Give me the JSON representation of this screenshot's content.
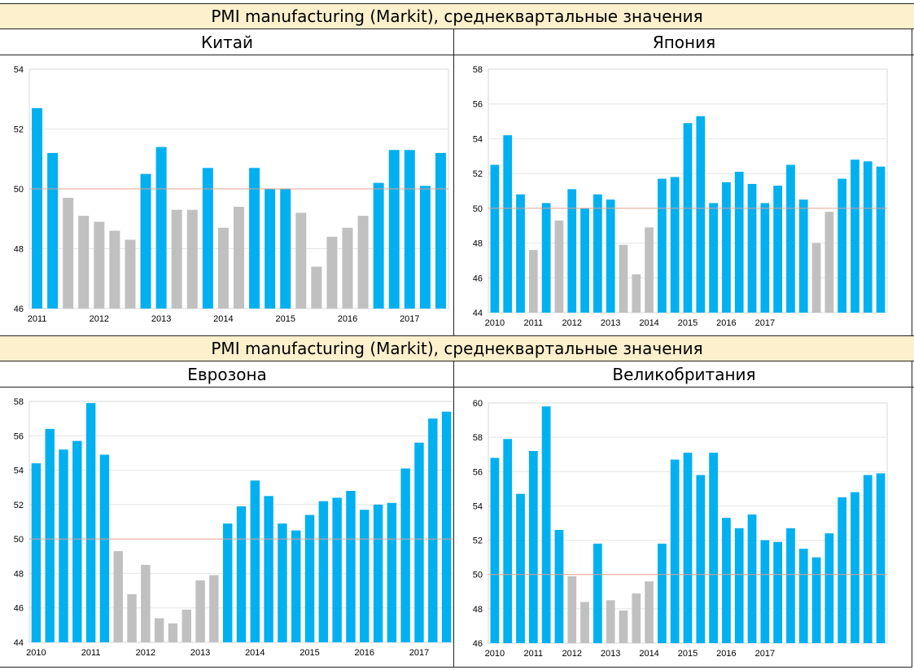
{
  "headers": {
    "top": "PMI manufacturing (Markit), среднеквартальные значения",
    "bottom": "PMI manufacturing (Markit), среднеквартальные значения"
  },
  "colors": {
    "above_50": "#00b0f0",
    "below_50": "#c0c0c0",
    "reference_line": "#e0a090",
    "grid": "#e4e4e4"
  },
  "chart_data": [
    {
      "type": "bar",
      "title": "Китай",
      "ylim": [
        46,
        54
      ],
      "yticks": [
        46,
        48,
        50,
        52,
        54
      ],
      "reference": 50,
      "x_labels": [
        "2011",
        "2012",
        "2013",
        "2014",
        "2015",
        "2016",
        "2017"
      ],
      "x_label_bar_index": [
        0,
        4,
        8,
        12,
        16,
        20,
        24
      ],
      "values": [
        52.7,
        51.2,
        49.7,
        49.1,
        48.9,
        48.6,
        48.3,
        50.5,
        51.4,
        49.3,
        49.3,
        50.7,
        48.7,
        49.4,
        50.7,
        50.0,
        50.0,
        49.2,
        47.4,
        48.4,
        48.7,
        49.1,
        50.2,
        51.3,
        51.3,
        50.1,
        51.2
      ]
    },
    {
      "type": "bar",
      "title": "Япония",
      "ylim": [
        44,
        58
      ],
      "yticks": [
        44,
        46,
        48,
        50,
        52,
        54,
        56,
        58
      ],
      "reference": 50,
      "x_labels": [
        "2010",
        "2011",
        "2012",
        "2013",
        "2014",
        "2015",
        "2016",
        "2017"
      ],
      "x_label_bar_index": [
        0,
        3,
        6,
        9,
        12,
        15,
        18,
        21
      ],
      "values": [
        52.5,
        54.2,
        50.8,
        47.6,
        50.3,
        49.3,
        51.1,
        50.0,
        50.8,
        50.5,
        47.9,
        46.2,
        48.9,
        51.7,
        51.8,
        54.9,
        55.3,
        50.3,
        51.5,
        52.1,
        51.4,
        50.3,
        51.3,
        52.5,
        50.5,
        48.0,
        49.8,
        51.7,
        52.8,
        52.7,
        52.4
      ]
    },
    {
      "type": "bar",
      "title": "Еврозона",
      "ylim": [
        44,
        58
      ],
      "yticks": [
        44,
        46,
        48,
        50,
        52,
        54,
        56,
        58
      ],
      "reference": 50,
      "x_labels": [
        "2010",
        "2011",
        "2012",
        "2013",
        "2014",
        "2015",
        "2016",
        "2017"
      ],
      "x_label_bar_index": [
        0,
        4,
        8,
        12,
        16,
        20,
        24,
        28
      ],
      "values": [
        54.4,
        56.4,
        55.2,
        55.7,
        57.9,
        54.9,
        49.3,
        46.8,
        48.5,
        45.4,
        45.1,
        45.9,
        47.6,
        47.9,
        50.9,
        51.9,
        53.4,
        52.5,
        50.9,
        50.5,
        51.4,
        52.2,
        52.4,
        52.8,
        51.7,
        52.0,
        52.1,
        54.1,
        55.6,
        57.0,
        57.4
      ]
    },
    {
      "type": "bar",
      "title": "Великобритания",
      "ylim": [
        46,
        60
      ],
      "yticks": [
        46,
        48,
        50,
        52,
        54,
        56,
        58,
        60
      ],
      "reference": 50,
      "x_labels": [
        "2010",
        "2011",
        "2012",
        "2013",
        "2014",
        "2015",
        "2016",
        "2017"
      ],
      "x_label_bar_index": [
        0,
        3,
        6,
        9,
        12,
        15,
        18,
        21
      ],
      "values": [
        56.8,
        57.9,
        54.7,
        57.2,
        59.8,
        52.6,
        49.9,
        48.4,
        51.8,
        48.5,
        47.9,
        48.9,
        49.6,
        51.8,
        56.7,
        57.1,
        55.8,
        57.1,
        53.3,
        52.7,
        53.5,
        52.0,
        51.9,
        52.7,
        51.5,
        51.0,
        52.4,
        54.5,
        54.8,
        55.8,
        55.9
      ]
    }
  ]
}
